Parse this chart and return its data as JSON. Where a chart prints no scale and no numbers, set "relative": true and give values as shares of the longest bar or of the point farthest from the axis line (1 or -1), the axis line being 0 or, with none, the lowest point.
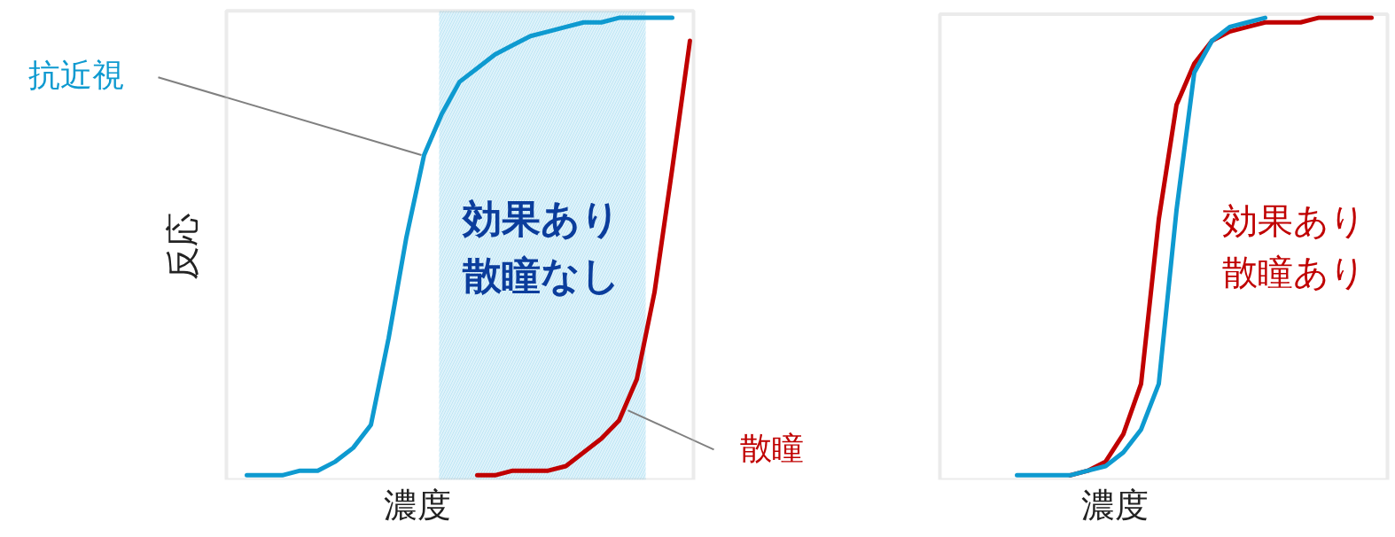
{
  "chart_data": [
    {
      "type": "line",
      "relative": true,
      "xlabel": "濃度",
      "ylabel": "反応",
      "tick_labels": false,
      "grid": false,
      "legend": false,
      "marker": "none",
      "line_style": "solid",
      "categories": [
        null,
        null,
        null,
        null,
        null,
        null,
        null,
        null,
        null,
        null,
        null,
        null,
        null,
        null,
        null,
        null,
        null,
        null,
        null,
        null,
        null,
        null,
        null,
        null,
        null,
        null
      ],
      "series": [
        {
          "name": "抗近視",
          "color": "#0e9ad0",
          "values": [
            0.0,
            0.0,
            0.0,
            0.01,
            0.01,
            0.03,
            0.06,
            0.11,
            0.3,
            0.52,
            0.7,
            0.79,
            0.86,
            0.89,
            0.92,
            0.94,
            0.96,
            0.97,
            0.98,
            0.99,
            0.99,
            1.0,
            1.0,
            1.0,
            1.0,
            null
          ]
        },
        {
          "name": "散瞳",
          "color": "#c00000",
          "values": [
            null,
            null,
            null,
            null,
            null,
            null,
            null,
            null,
            null,
            null,
            null,
            null,
            null,
            0.0,
            0.0,
            0.01,
            0.01,
            0.01,
            0.02,
            0.05,
            0.08,
            0.12,
            0.21,
            0.4,
            0.67,
            0.95
          ]
        }
      ],
      "annotations": [
        "効果あり散瞳なし"
      ]
    },
    {
      "type": "line",
      "relative": true,
      "xlabel": "濃度",
      "tick_labels": false,
      "grid": false,
      "legend": false,
      "marker": "none",
      "line_style": "solid",
      "categories": [
        null,
        null,
        null,
        null,
        null,
        null,
        null,
        null,
        null,
        null,
        null,
        null,
        null,
        null,
        null,
        null,
        null,
        null,
        null,
        null,
        null
      ],
      "series": [
        {
          "color": "#c00000",
          "values": [
            null,
            null,
            null,
            0.0,
            0.01,
            0.03,
            0.09,
            0.2,
            0.56,
            0.81,
            0.9,
            0.95,
            0.97,
            0.98,
            0.99,
            0.99,
            0.99,
            1.0,
            1.0,
            1.0,
            1.0
          ]
        },
        {
          "color": "#0e9ad0",
          "values": [
            0.0,
            0.0,
            0.0,
            0.0,
            0.01,
            0.02,
            0.05,
            0.1,
            0.2,
            0.58,
            0.88,
            0.95,
            0.98,
            0.99,
            1.0,
            null,
            null,
            null,
            null,
            null,
            null
          ]
        }
      ],
      "annotations": [
        "効果あり散瞳あり"
      ]
    }
  ]
}
